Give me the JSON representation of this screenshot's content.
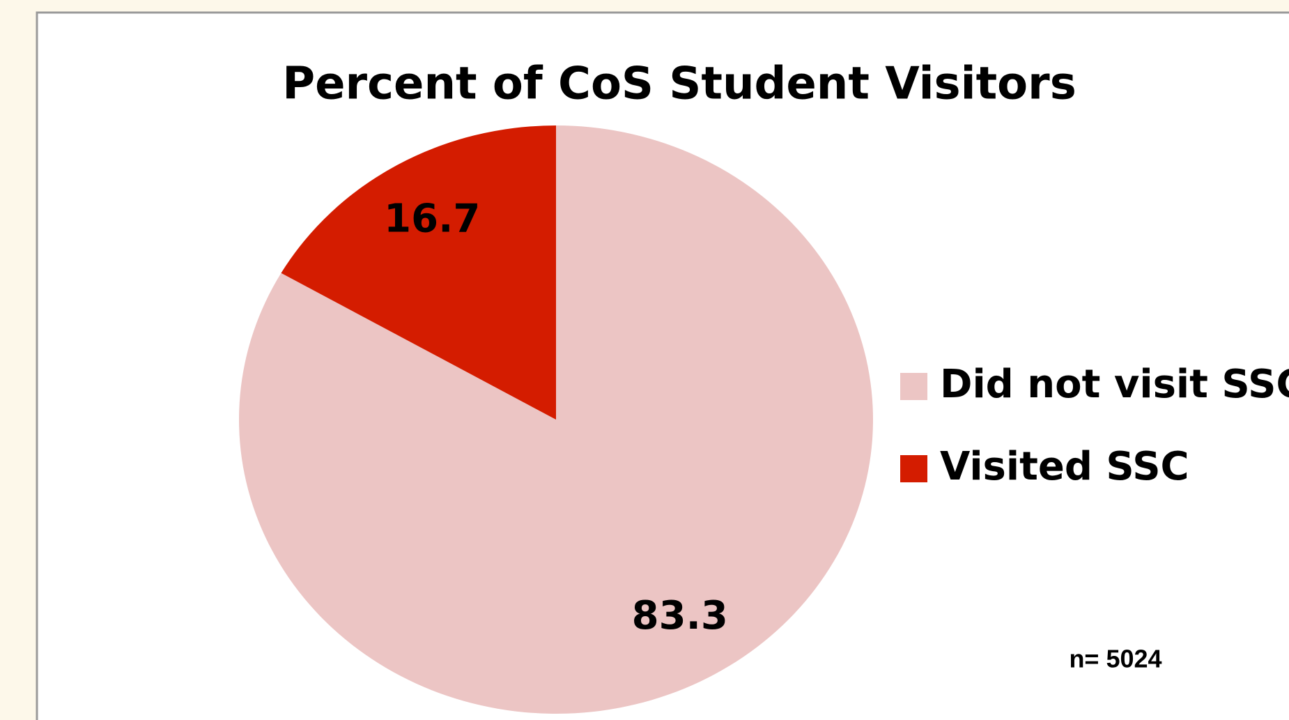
{
  "chart_data": {
    "type": "pie",
    "title": "Percent of CoS Student Visitors",
    "categories": [
      "Did not visit SSC",
      "Visited SSC"
    ],
    "values": [
      83.3,
      16.7
    ],
    "colors": [
      "#ecc5c4",
      "#d41c00"
    ],
    "legend": "right",
    "annotation": "n= 5024"
  }
}
